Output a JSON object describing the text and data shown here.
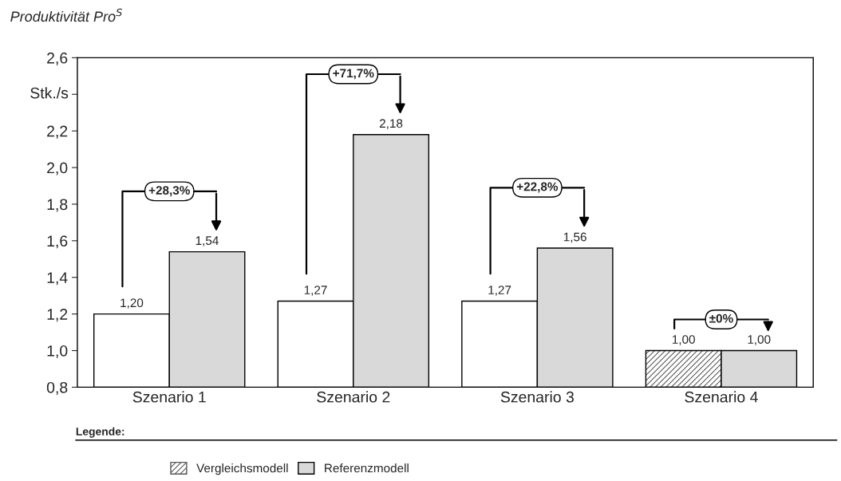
{
  "chart_data": {
    "type": "bar",
    "title": "Produktivität Pro$^{S}$",
    "ylabel": "Stk./s",
    "legend_title": "Legende:",
    "categories": [
      "Szenario 1",
      "Szenario 2",
      "Szenario 3",
      "Szenario 4"
    ],
    "series": [
      {
        "color": "#ffffff",
        "values": [
          1.2,
          1.27,
          1.27,
          null
        ],
        "value_labels": [
          "1,20",
          "1,27",
          "1,27",
          null
        ]
      },
      {
        "name": "Vergleichsmodell",
        "color": "#595959",
        "values": [
          null,
          null,
          null,
          1.0
        ],
        "value_labels": [
          null,
          null,
          null,
          "1,00"
        ]
      },
      {
        "name": "Referenzmodell",
        "color": "#d9d9d9",
        "values": [
          1.54,
          2.18,
          1.56,
          1.0
        ],
        "value_labels": [
          "1,54",
          "2,18",
          "1,56",
          "1,00"
        ]
      }
    ],
    "ylim": [
      0.8,
      2.6
    ],
    "yticks": [
      {
        "value": 0.8,
        "label": "0,8"
      },
      {
        "value": 1.0,
        "label": "1,0"
      },
      {
        "value": 1.2,
        "label": "1,2"
      },
      {
        "value": 1.4,
        "label": "1,4"
      },
      {
        "value": 1.6,
        "label": "1,6"
      },
      {
        "value": 1.8,
        "label": "1,8"
      },
      {
        "value": 2.0,
        "label": "2,0"
      },
      {
        "value": 2.2,
        "label": "2,2"
      },
      {
        "value": 2.4,
        "label": null
      },
      {
        "value": 2.6,
        "label": "2,6"
      }
    ],
    "annotations": [
      "+28,3%",
      "+71,7%",
      "+22,8%",
      "±0%"
    ],
    "legend": "bottom",
    "grid": false
  }
}
